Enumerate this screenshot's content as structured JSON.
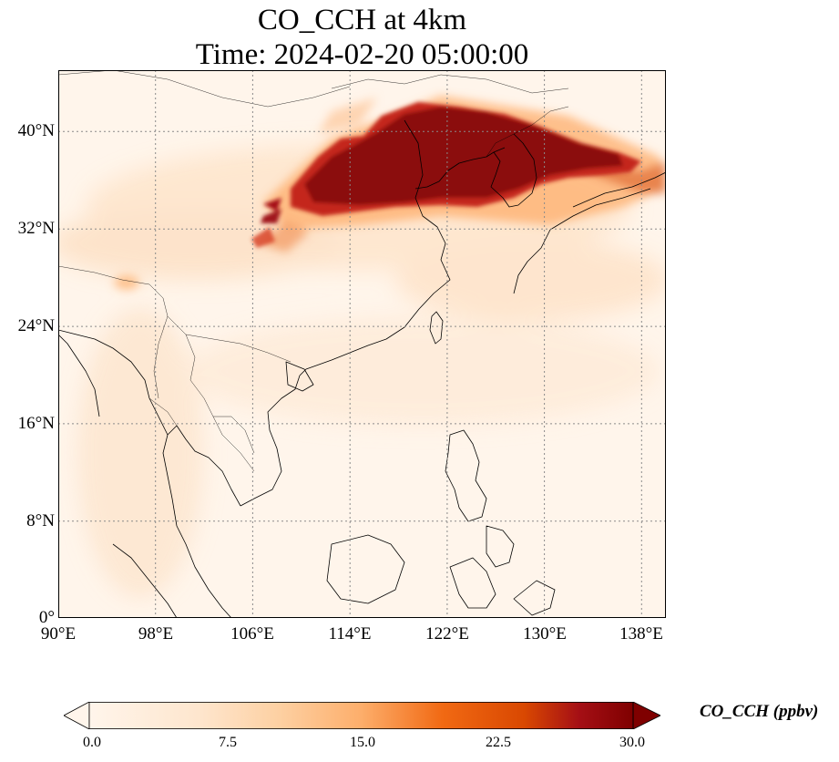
{
  "title": {
    "line1": "CO_CCH at 4km",
    "line2": "Time: 2024-02-20 05:00:00"
  },
  "map": {
    "lon_range": [
      90,
      140
    ],
    "lat_range": [
      0,
      45
    ],
    "grid_lines": "dotted",
    "lat_ticks": [
      "40°N",
      "32°N",
      "24°N",
      "16°N",
      "8°N",
      "0°"
    ],
    "lon_ticks": [
      "90°E",
      "98°E",
      "106°E",
      "114°E",
      "122°E",
      "130°E",
      "138°E"
    ],
    "plume_color": "#7f0000",
    "background_color": "#fff5eb"
  },
  "colorbar": {
    "label": "CO_CCH (ppbv)",
    "ticks": [
      "0.0",
      "7.5",
      "15.0",
      "22.5",
      "30.0"
    ],
    "min": 0,
    "max": 30,
    "extend": "both",
    "colormap": [
      "#fff5eb",
      "#fdd0a2",
      "#fdae6b",
      "#f16913",
      "#d94801",
      "#a50f15",
      "#7f0000"
    ]
  }
}
